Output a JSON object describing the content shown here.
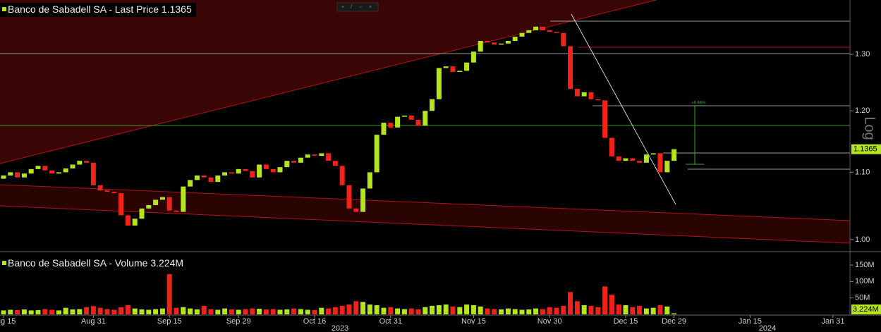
{
  "chart_data": [
    {
      "type": "candlestick",
      "title": "Banco de Sabadell SA - Last Price",
      "log_scale": true,
      "log_label": "Log",
      "annotation": "+8.66%",
      "up_color": "#b5e61d",
      "down_color": "#f0231b",
      "categories": [
        "Aug 15",
        null,
        null,
        null,
        null,
        null,
        null,
        null,
        null,
        null,
        null,
        null,
        null,
        "Aug 31",
        null,
        null,
        null,
        null,
        null,
        null,
        null,
        null,
        null,
        null,
        "Sep 15",
        null,
        null,
        null,
        null,
        null,
        null,
        null,
        null,
        null,
        "Sep 29",
        null,
        null,
        null,
        null,
        null,
        null,
        null,
        null,
        null,
        null,
        "Oct 16",
        null,
        null,
        null,
        null,
        null,
        null,
        null,
        null,
        null,
        null,
        "Oct 31",
        null,
        null,
        null,
        null,
        null,
        null,
        null,
        null,
        null,
        null,
        null,
        "Nov 15",
        null,
        null,
        null,
        null,
        null,
        null,
        null,
        null,
        null,
        null,
        "Nov 30",
        null,
        null,
        null,
        null,
        null,
        null,
        null,
        null,
        null,
        null,
        "Dec 15",
        null,
        null,
        null,
        null,
        null,
        null,
        "Dec 29",
        null,
        null,
        null,
        null,
        null,
        null,
        null,
        null,
        null,
        null,
        "Jan 15",
        null,
        null,
        null,
        null,
        null,
        null,
        null,
        null,
        null,
        null,
        null,
        "Jan 31",
        null
      ],
      "year_labels": [
        "2023",
        "2024"
      ],
      "open": [
        1.09,
        1.095,
        1.1,
        1.092,
        1.098,
        1.105,
        1.11,
        1.103,
        1.098,
        1.1,
        1.106,
        1.112,
        1.118,
        1.115,
        1.08,
        1.072,
        1.07,
        1.068,
        1.035,
        1.02,
        1.03,
        1.045,
        1.05,
        1.058,
        1.062,
        1.042,
        1.04,
        1.078,
        1.088,
        1.095,
        1.092,
        1.085,
        1.095,
        1.1,
        1.098,
        1.105,
        1.102,
        1.092,
        1.112,
        1.105,
        1.1,
        1.108,
        1.118,
        1.115,
        1.123,
        1.128,
        1.126,
        1.13,
        1.118,
        1.11,
        1.08,
        1.045,
        1.04,
        1.075,
        1.1,
        1.16,
        1.18,
        1.172,
        1.19,
        1.192,
        1.185,
        1.175,
        1.2,
        1.22,
        1.275,
        1.278,
        1.268,
        1.27,
        1.285,
        1.305,
        1.325,
        1.322,
        1.318,
        1.32,
        1.325,
        1.333,
        1.34,
        1.345,
        1.352,
        1.345,
        1.342,
        1.34,
        1.315,
        1.238,
        1.225,
        1.232,
        1.22,
        1.218,
        1.155,
        1.125,
        1.118,
        1.122,
        1.118,
        1.115,
        1.128,
        1.13,
        1.1,
        1.118,
        null,
        null,
        null,
        null,
        null,
        null,
        null,
        null,
        null,
        null,
        null,
        null,
        null,
        null,
        null,
        null,
        null,
        null,
        null,
        null,
        null,
        null,
        null,
        null
      ],
      "close": [
        1.095,
        1.1,
        1.092,
        1.098,
        1.105,
        1.11,
        1.103,
        1.098,
        1.1,
        1.106,
        1.112,
        1.118,
        1.115,
        1.08,
        1.072,
        1.07,
        1.068,
        1.035,
        1.02,
        1.03,
        1.045,
        1.05,
        1.058,
        1.062,
        1.042,
        1.04,
        1.078,
        1.088,
        1.095,
        1.092,
        1.085,
        1.095,
        1.1,
        1.098,
        1.105,
        1.102,
        1.092,
        1.112,
        1.105,
        1.1,
        1.108,
        1.118,
        1.115,
        1.123,
        1.128,
        1.126,
        1.13,
        1.118,
        1.11,
        1.08,
        1.045,
        1.04,
        1.075,
        1.1,
        1.16,
        1.18,
        1.172,
        1.19,
        1.192,
        1.185,
        1.175,
        1.2,
        1.22,
        1.275,
        1.278,
        1.268,
        1.27,
        1.285,
        1.305,
        1.325,
        1.322,
        1.318,
        1.32,
        1.325,
        1.333,
        1.34,
        1.345,
        1.352,
        1.345,
        1.342,
        1.34,
        1.315,
        1.238,
        1.225,
        1.232,
        1.22,
        1.218,
        1.155,
        1.125,
        1.118,
        1.122,
        1.118,
        1.115,
        1.128,
        1.13,
        1.1,
        1.118,
        1.1365,
        null,
        null,
        null,
        null,
        null,
        null,
        null,
        null,
        null,
        null,
        null,
        null,
        null,
        null,
        null,
        null,
        null,
        null,
        null,
        null,
        null,
        null,
        null,
        null
      ],
      "ylim": [
        0.985,
        1.404
      ],
      "yticks": [
        {
          "value": 1,
          "label": "1.00"
        },
        {
          "value": 1.1,
          "label": "1.10"
        },
        {
          "value": 1.2,
          "label": "1.20"
        },
        {
          "value": 1.3,
          "label": "1.30"
        }
      ]
    },
    {
      "type": "bar",
      "title": "Banco de Sabadell SA - Volume",
      "last_value_label": "3.224M",
      "values": [
        12,
        14,
        13,
        15,
        12,
        13,
        16,
        14,
        12,
        20,
        15,
        16,
        22,
        25,
        20,
        16,
        14,
        22,
        28,
        18,
        15,
        14,
        16,
        18,
        122,
        20,
        22,
        18,
        15,
        26,
        16,
        14,
        18,
        15,
        14,
        16,
        18,
        17,
        15,
        16,
        14,
        15,
        18,
        16,
        14,
        13,
        20,
        18,
        22,
        26,
        30,
        40,
        38,
        30,
        28,
        20,
        22,
        18,
        16,
        18,
        15,
        22,
        26,
        28,
        30,
        24,
        22,
        30,
        28,
        24,
        18,
        16,
        15,
        18,
        16,
        14,
        15,
        18,
        16,
        22,
        20,
        26,
        68,
        40,
        28,
        26,
        22,
        85,
        60,
        30,
        28,
        22,
        26,
        18,
        20,
        28,
        24,
        3.224,
        null,
        null,
        null,
        null,
        null,
        null,
        null,
        null,
        null,
        null,
        null,
        null,
        null,
        null,
        null,
        null,
        null,
        null,
        null,
        null,
        null,
        null,
        null,
        null
      ],
      "ylim": [
        0,
        180
      ],
      "yticks": [
        {
          "value": 50,
          "label": "50M"
        },
        {
          "value": 100,
          "label": "100M"
        },
        {
          "value": 150,
          "label": "150M"
        }
      ]
    }
  ]
}
